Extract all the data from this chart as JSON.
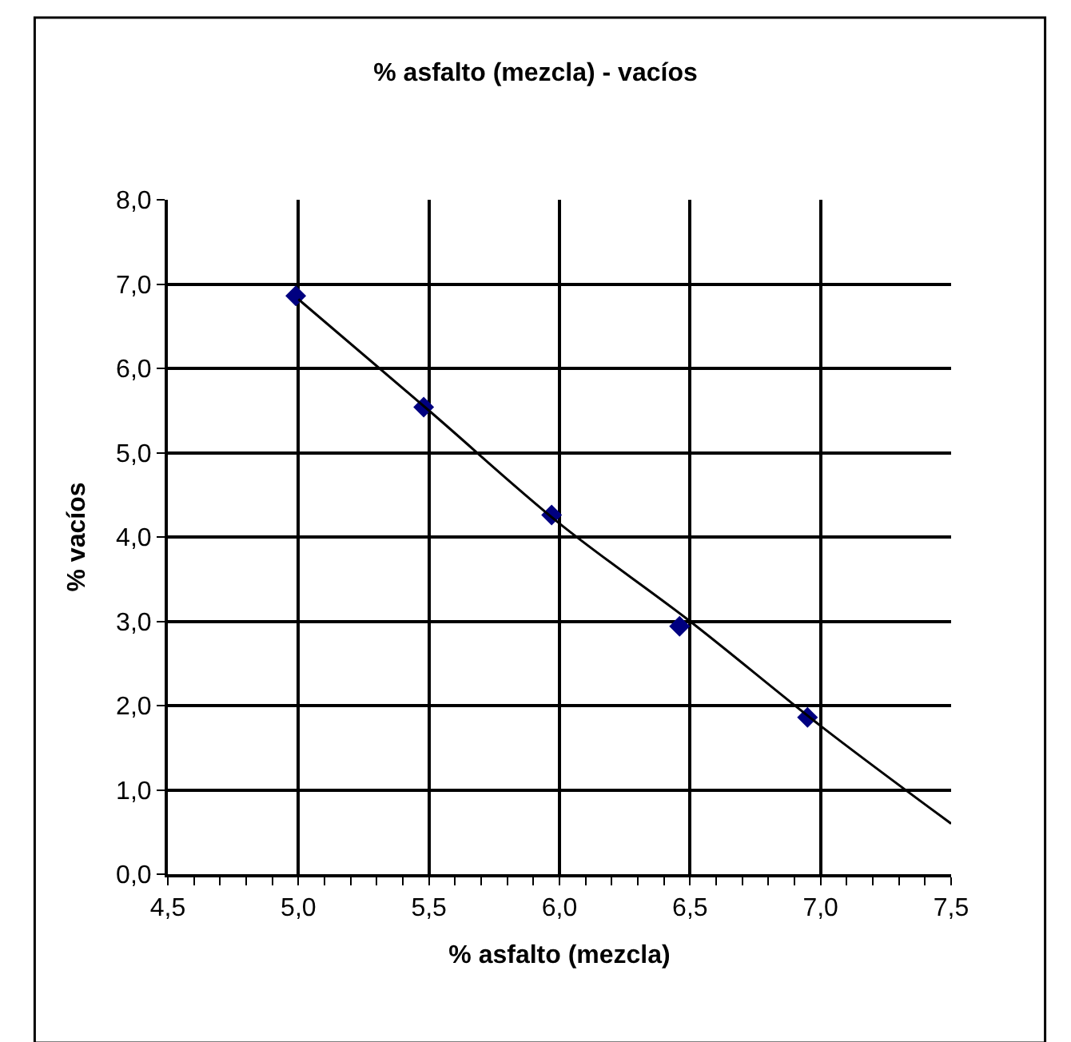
{
  "chart_data": {
    "type": "scatter",
    "title": "% asfalto (mezcla) - vacíos",
    "xlabel": "% asfalto (mezcla)",
    "ylabel": "% vacíos",
    "series": [
      {
        "color": "#000080",
        "marker": "diamond",
        "x": [
          4.99,
          5.48,
          5.97,
          6.46,
          6.95
        ],
        "values": [
          6.86,
          5.54,
          4.26,
          2.94,
          1.86
        ]
      },
      {
        "type": "line",
        "color": "#000000",
        "marker": "none",
        "line_style": "solid",
        "x": [
          5.0,
          5.5,
          6.0,
          6.5,
          7.0,
          7.5
        ],
        "values": [
          6.82,
          5.5,
          4.16,
          3.0,
          1.76,
          0.6
        ]
      }
    ],
    "xlim": [
      4.5,
      7.5
    ],
    "ylim": [
      0,
      8
    ],
    "xticks": [
      {
        "value": 4.5,
        "label": "4,5"
      },
      {
        "value": 5.0,
        "label": "5,0"
      },
      {
        "value": 5.5,
        "label": "5,5"
      },
      {
        "value": 6.0,
        "label": "6,0"
      },
      {
        "value": 6.5,
        "label": "6,5"
      },
      {
        "value": 7.0,
        "label": "7,0"
      },
      {
        "value": 7.5,
        "label": "7,5"
      }
    ],
    "yticks": [
      {
        "value": 0,
        "label": "0,0"
      },
      {
        "value": 1,
        "label": "1,0"
      },
      {
        "value": 2,
        "label": "2,0"
      },
      {
        "value": 3,
        "label": "3,0"
      },
      {
        "value": 4,
        "label": "4,0"
      },
      {
        "value": 5,
        "label": "5,0"
      },
      {
        "value": 6,
        "label": "6,0"
      },
      {
        "value": 7,
        "label": "7,0"
      },
      {
        "value": 8,
        "label": "8,0"
      }
    ],
    "grid": true
  }
}
